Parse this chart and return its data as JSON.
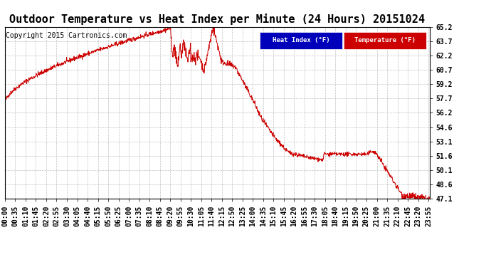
{
  "title": "Outdoor Temperature vs Heat Index per Minute (24 Hours) 20151024",
  "copyright": "Copyright 2015 Cartronics.com",
  "legend_heat_index": "Heat Index (°F)",
  "legend_temperature": "Temperature (°F)",
  "ylim": [
    47.1,
    65.2
  ],
  "yticks": [
    47.1,
    48.6,
    50.1,
    51.6,
    53.1,
    54.6,
    56.2,
    57.7,
    59.2,
    60.7,
    62.2,
    63.7,
    65.2
  ],
  "line_color": "#cc0000",
  "bg_color": "#ffffff",
  "grid_color": "#bbbbbb",
  "title_fontsize": 11,
  "tick_fontsize": 7,
  "copyright_fontsize": 7,
  "legend_heat_bg": "#0000bb",
  "legend_temp_bg": "#cc0000"
}
